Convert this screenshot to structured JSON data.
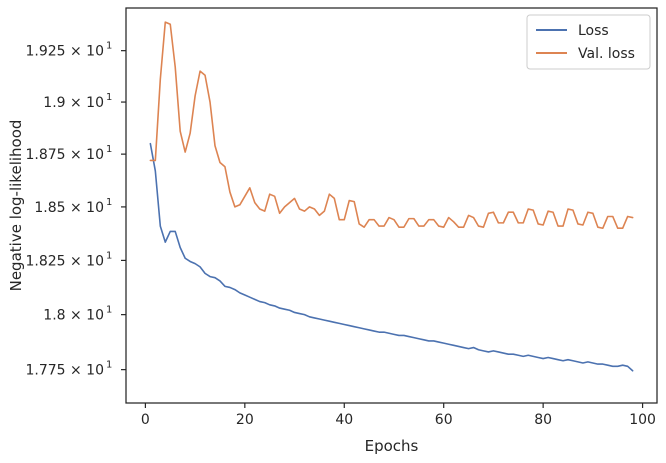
{
  "chart_data": {
    "type": "line",
    "xlabel": "Epochs",
    "ylabel": "Negative log-likelihood",
    "xlim": [
      -3.9,
      102.9
    ],
    "ylim": [
      17.6,
      19.46
    ],
    "y_scale": "log",
    "grid": false,
    "legend_position": "top-right",
    "x_ticks": [
      0,
      20,
      40,
      60,
      80,
      100
    ],
    "y_ticks": [
      17.75,
      18.0,
      18.25,
      18.5,
      18.75,
      19.0,
      19.25
    ],
    "y_tick_labels": [
      "1.775 × 10^1",
      "1.8 × 10^1",
      "1.825 × 10^1",
      "1.85 × 10^1",
      "1.875 × 10^1",
      "1.9 × 10^1",
      "1.925 × 10^1"
    ],
    "series": [
      {
        "name": "Loss",
        "color": "#4c72b0",
        "x": [
          1,
          2,
          3,
          4,
          5,
          6,
          7,
          8,
          9,
          10,
          11,
          12,
          13,
          14,
          15,
          16,
          17,
          18,
          19,
          20,
          21,
          22,
          23,
          24,
          25,
          26,
          27,
          28,
          29,
          30,
          31,
          32,
          33,
          34,
          35,
          36,
          37,
          38,
          39,
          40,
          41,
          42,
          43,
          44,
          45,
          46,
          47,
          48,
          49,
          50,
          51,
          52,
          53,
          54,
          55,
          56,
          57,
          58,
          59,
          60,
          61,
          62,
          63,
          64,
          65,
          66,
          67,
          68,
          69,
          70,
          71,
          72,
          73,
          74,
          75,
          76,
          77,
          78,
          79,
          80,
          81,
          82,
          83,
          84,
          85,
          86,
          87,
          88,
          89,
          90,
          91,
          92,
          93,
          94,
          95,
          96,
          97,
          98
        ],
        "y": [
          18.8,
          18.67,
          18.41,
          18.335,
          18.385,
          18.385,
          18.31,
          18.26,
          18.245,
          18.235,
          18.22,
          18.19,
          18.175,
          18.17,
          18.155,
          18.13,
          18.125,
          18.115,
          18.1,
          18.09,
          18.08,
          18.07,
          18.06,
          18.055,
          18.045,
          18.04,
          18.03,
          18.025,
          18.02,
          18.01,
          18.005,
          18.0,
          17.99,
          17.985,
          17.98,
          17.975,
          17.97,
          17.965,
          17.96,
          17.955,
          17.95,
          17.945,
          17.94,
          17.935,
          17.93,
          17.925,
          17.92,
          17.92,
          17.915,
          17.91,
          17.905,
          17.905,
          17.9,
          17.895,
          17.89,
          17.885,
          17.88,
          17.88,
          17.875,
          17.87,
          17.865,
          17.86,
          17.855,
          17.85,
          17.845,
          17.85,
          17.84,
          17.835,
          17.83,
          17.835,
          17.83,
          17.825,
          17.82,
          17.82,
          17.815,
          17.81,
          17.815,
          17.81,
          17.805,
          17.8,
          17.805,
          17.8,
          17.795,
          17.79,
          17.795,
          17.79,
          17.785,
          17.78,
          17.785,
          17.78,
          17.775,
          17.775,
          17.77,
          17.765,
          17.765,
          17.77,
          17.765,
          17.745
        ]
      },
      {
        "name": "Val. loss",
        "color": "#dd8452",
        "x": [
          1,
          2,
          3,
          4,
          5,
          6,
          7,
          8,
          9,
          10,
          11,
          12,
          13,
          14,
          15,
          16,
          17,
          18,
          19,
          20,
          21,
          22,
          23,
          24,
          25,
          26,
          27,
          28,
          29,
          30,
          31,
          32,
          33,
          34,
          35,
          36,
          37,
          38,
          39,
          40,
          41,
          42,
          43,
          44,
          45,
          46,
          47,
          48,
          49,
          50,
          51,
          52,
          53,
          54,
          55,
          56,
          57,
          58,
          59,
          60,
          61,
          62,
          63,
          64,
          65,
          66,
          67,
          68,
          69,
          70,
          71,
          72,
          73,
          74,
          75,
          76,
          77,
          78,
          79,
          80,
          81,
          82,
          83,
          84,
          85,
          86,
          87,
          88,
          89,
          90,
          91,
          92,
          93,
          94,
          95,
          96,
          97,
          98
        ],
        "y": [
          18.72,
          18.72,
          19.11,
          19.39,
          19.38,
          19.17,
          18.86,
          18.76,
          18.85,
          19.03,
          19.15,
          19.13,
          19.0,
          18.79,
          18.71,
          18.69,
          18.57,
          18.5,
          18.51,
          18.55,
          18.59,
          18.52,
          18.49,
          18.48,
          18.56,
          18.55,
          18.47,
          18.5,
          18.52,
          18.54,
          18.49,
          18.48,
          18.5,
          18.49,
          18.46,
          18.48,
          18.56,
          18.54,
          18.44,
          18.44,
          18.53,
          18.525,
          18.42,
          18.405,
          18.44,
          18.44,
          18.41,
          18.41,
          18.45,
          18.44,
          18.405,
          18.405,
          18.445,
          18.445,
          18.41,
          18.41,
          18.44,
          18.44,
          18.41,
          18.405,
          18.45,
          18.43,
          18.405,
          18.405,
          18.46,
          18.45,
          18.41,
          18.405,
          18.47,
          18.475,
          18.425,
          18.425,
          18.475,
          18.475,
          18.425,
          18.425,
          18.49,
          18.485,
          18.42,
          18.415,
          18.48,
          18.475,
          18.41,
          18.41,
          18.49,
          18.485,
          18.42,
          18.415,
          18.475,
          18.47,
          18.405,
          18.4,
          18.455,
          18.455,
          18.4,
          18.4,
          18.455,
          18.45
        ]
      }
    ]
  }
}
